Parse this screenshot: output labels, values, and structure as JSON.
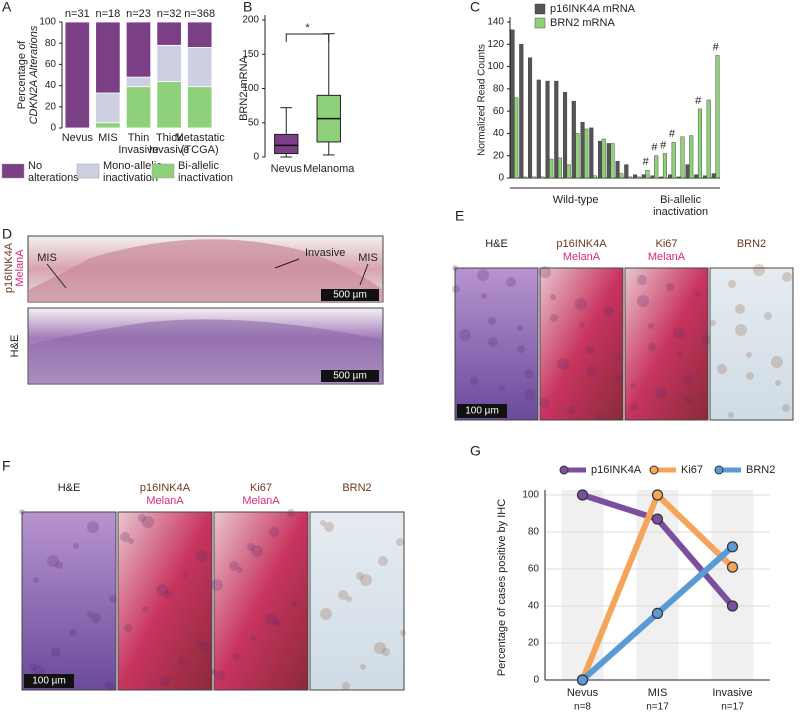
{
  "chart_data": [
    {
      "panel": "A",
      "type": "stacked_bar",
      "ylabel": [
        "Percentage of",
        "CDKN2A Alterations"
      ],
      "categories": [
        [
          "Nevus"
        ],
        [
          "MIS"
        ],
        [
          "Thin",
          "Invasive"
        ],
        [
          "Thick",
          "Invasive"
        ],
        [
          "Metastatic",
          "(TCGA)"
        ]
      ],
      "top_labels": [
        "n=31",
        "n=18",
        "n=23",
        "n=32",
        "n=368"
      ],
      "series": [
        {
          "name": [
            "Bi-allelic",
            "inactivation"
          ],
          "color": "#8fd17a",
          "values": [
            0,
            5,
            39,
            44,
            39
          ]
        },
        {
          "name": [
            "Mono-allelic",
            "inactivation"
          ],
          "color": "#cfcfe3",
          "values": [
            0,
            28,
            9,
            34,
            37
          ]
        },
        {
          "name": [
            "No",
            "alterations"
          ],
          "color": "#7b3f86",
          "values": [
            100,
            67,
            52,
            22,
            24
          ]
        }
      ],
      "ylim": [
        0,
        100
      ],
      "yticks": [
        0,
        20,
        40,
        60,
        80,
        100
      ]
    },
    {
      "panel": "B",
      "type": "box",
      "ylabel": "BRN2 mRNA",
      "categories": [
        "Nevus",
        "Melanoma"
      ],
      "boxes": [
        {
          "color": "#7b3f86",
          "min": 0,
          "q1": 5,
          "median": 17,
          "q3": 33,
          "max": 72
        },
        {
          "color": "#8fd17a",
          "min": 3,
          "q1": 22,
          "median": 56,
          "q3": 90,
          "max": 180
        }
      ],
      "annotation": "*",
      "ylim": [
        0,
        200
      ],
      "yticks": [
        0,
        50,
        100,
        150,
        200
      ]
    },
    {
      "panel": "C",
      "type": "grouped_bar",
      "ylabel": "Normalized Read Counts",
      "categories": [
        null,
        null,
        null,
        null,
        null,
        null,
        null,
        null,
        null,
        null,
        null,
        null,
        null,
        null,
        null,
        null,
        null,
        null,
        null,
        null,
        null,
        null,
        null,
        null
      ],
      "series": [
        {
          "name": "p16INK4A mRNA",
          "color": "#555555",
          "values": [
            133,
            120,
            108,
            88,
            87,
            87,
            77,
            69,
            50,
            45,
            33,
            31,
            15,
            12,
            3,
            3,
            2,
            1,
            3,
            1,
            12,
            3,
            2,
            4
          ]
        },
        {
          "name": "BRN2 mRNA",
          "color": "#8fd17a",
          "values": [
            72,
            1,
            1,
            1,
            17,
            18,
            12,
            40,
            44,
            2,
            35,
            31,
            4,
            1,
            1,
            7,
            20,
            22,
            32,
            37,
            38,
            62,
            70,
            110
          ]
        }
      ],
      "groups": [
        {
          "label": [
            "Wild-type"
          ],
          "from": 0,
          "to": 14
        },
        {
          "label": [
            "Bi-allelic",
            "inactivation"
          ],
          "from": 15,
          "to": 23
        }
      ],
      "annotations": [
        {
          "index": 15,
          "text": "#"
        },
        {
          "index": 16,
          "text": "#"
        },
        {
          "index": 17,
          "text": "#"
        },
        {
          "index": 18,
          "text": "#"
        },
        {
          "index": 21,
          "text": "#"
        },
        {
          "index": 23,
          "text": "#"
        }
      ],
      "ylim": [
        0,
        140
      ],
      "yticks": [
        0,
        20,
        40,
        60,
        80,
        100,
        120,
        140
      ]
    },
    {
      "panel": "G",
      "type": "line",
      "ylabel": "Percentage of cases positive by IHC",
      "categories": [
        "Nevus",
        "MIS",
        "Invasive"
      ],
      "category_notes": [
        "n=8",
        "n=17",
        "n=17"
      ],
      "series": [
        {
          "name": "p16INK4A",
          "color": "#7b4f9e",
          "values": [
            100,
            87,
            40
          ]
        },
        {
          "name": "Ki67",
          "color": "#f5a55a",
          "values": [
            0,
            100,
            61
          ]
        },
        {
          "name": "BRN2",
          "color": "#5b9bd5",
          "values": [
            0,
            36,
            72
          ]
        }
      ],
      "ylim": [
        0,
        100
      ],
      "yticks": [
        0,
        20,
        40,
        60,
        80,
        100
      ],
      "grid": true
    }
  ],
  "images": {
    "D": {
      "panel": "D",
      "side_labels": [
        [
          "p16INK4A",
          "MelanA"
        ],
        [
          "H&E"
        ]
      ],
      "annotations": [
        "MIS",
        "Invasive",
        "MIS"
      ],
      "scale_bars": [
        "500 µm",
        "500 µm"
      ]
    },
    "E": {
      "panel": "E",
      "labels": [
        [
          "H&E"
        ],
        [
          "p16INK4A",
          "MelanA"
        ],
        [
          "Ki67",
          "MelanA"
        ],
        [
          "BRN2"
        ]
      ],
      "scale_bar": "100 µm"
    },
    "F": {
      "panel": "F",
      "labels": [
        [
          "H&E"
        ],
        [
          "p16INK4A",
          "MelanA"
        ],
        [
          "Ki67",
          "MelanA"
        ],
        [
          "BRN2"
        ]
      ],
      "scale_bar": "100 µm"
    }
  }
}
